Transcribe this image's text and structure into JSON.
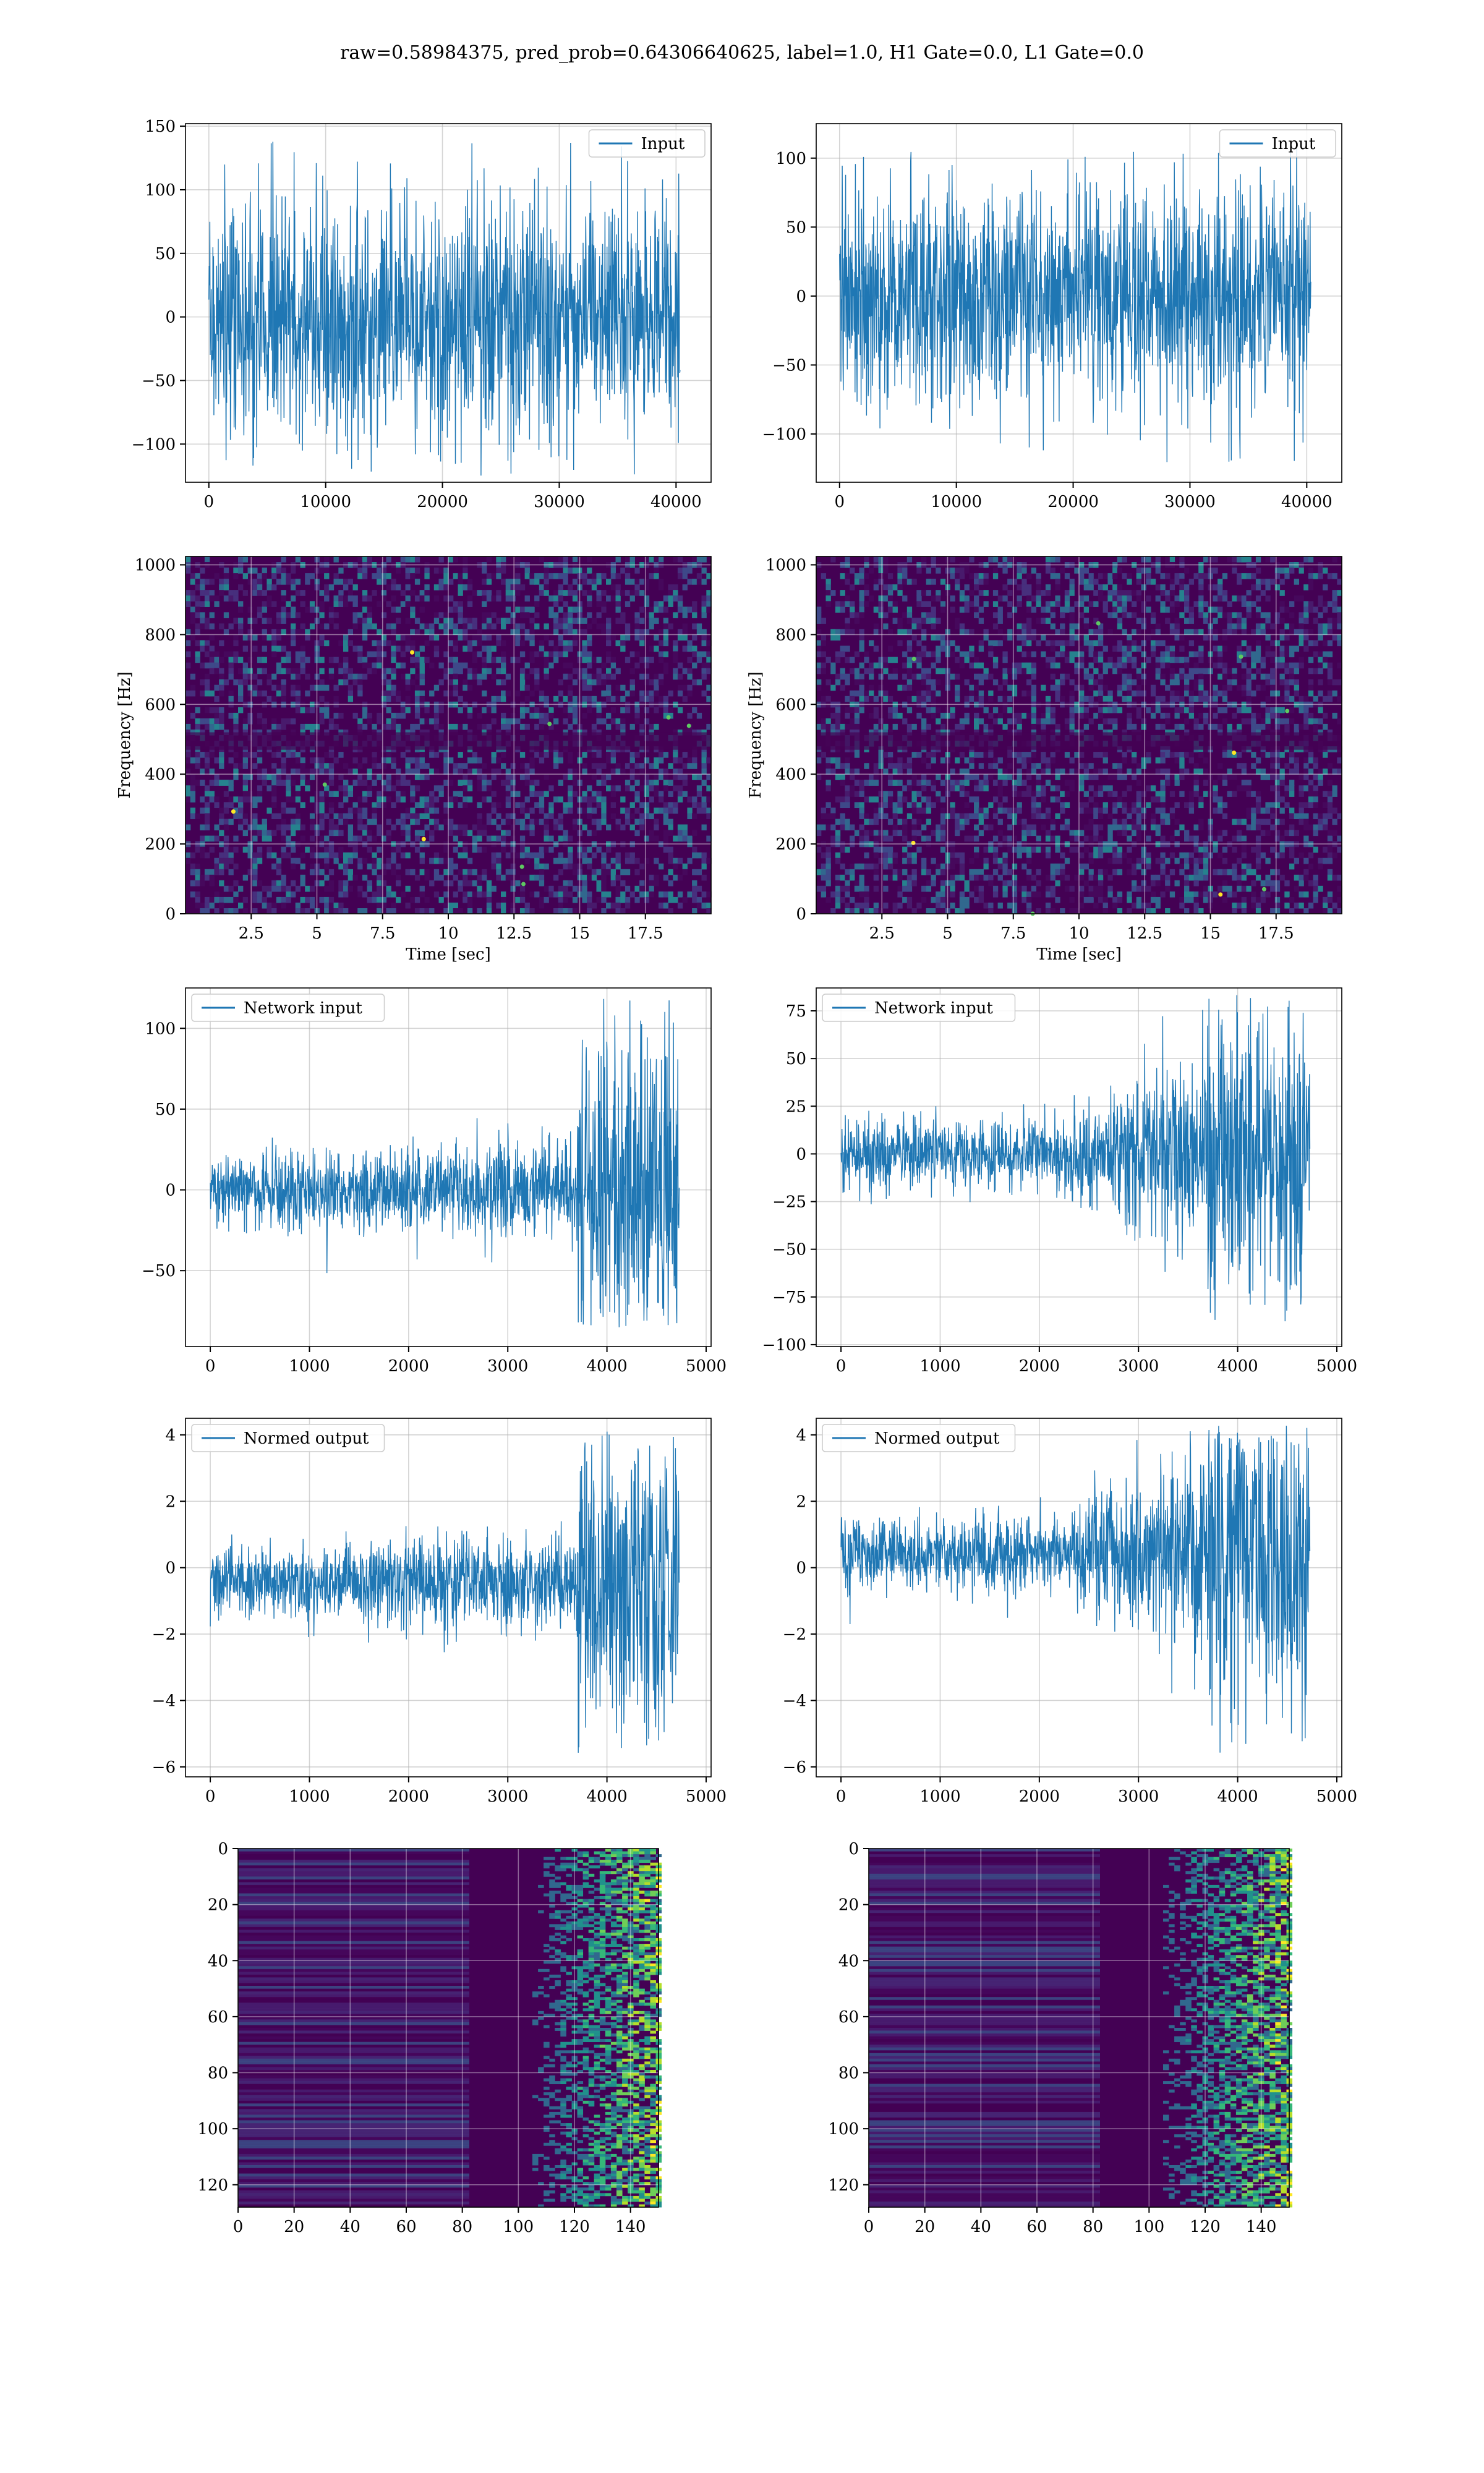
{
  "figure": {
    "title": "raw=0.58984375, pred_prob=0.64306640625, label=1.0, H1 Gate=0.0, L1 Gate=0.0"
  },
  "colors": {
    "line": "#1f77b4",
    "viridis_dark": "#440154",
    "viridis_mid": "#21918c",
    "viridis_bright": "#fde725",
    "grid": "#cccccc"
  },
  "chart_data": [
    {
      "type": "line",
      "panel": "row1-left",
      "series": [
        {
          "name": "Input",
          "x_range": [
            0,
            40960
          ],
          "amplitude_range": [
            -125,
            138
          ]
        }
      ],
      "xlim": [
        -2000,
        43000
      ],
      "ylim": [
        -130,
        152
      ],
      "xticks": [
        0,
        10000,
        20000,
        30000,
        40000
      ],
      "yticks": [
        -100,
        -50,
        0,
        50,
        100,
        150
      ],
      "legend": "top-right",
      "grid": true
    },
    {
      "type": "line",
      "panel": "row1-right",
      "series": [
        {
          "name": "Input",
          "x_range": [
            0,
            40960
          ],
          "amplitude_range": [
            -121,
            112
          ]
        }
      ],
      "xlim": [
        -2000,
        43000
      ],
      "ylim": [
        -135,
        125
      ],
      "xticks": [
        0,
        10000,
        20000,
        30000,
        40000
      ],
      "yticks": [
        -100,
        -50,
        0,
        50,
        100
      ],
      "legend": "top-right",
      "grid": true
    },
    {
      "type": "heatmap",
      "panel": "row2-left",
      "xlabel": "Time [sec]",
      "ylabel": "Frequency [Hz]",
      "xlim": [
        0,
        20
      ],
      "ylim": [
        0,
        1024
      ],
      "xticks": [
        2.5,
        5.0,
        7.5,
        10.0,
        12.5,
        15.0,
        17.5
      ],
      "yticks": [
        0,
        200,
        400,
        600,
        800,
        1000
      ],
      "colormap": "viridis",
      "grid": true
    },
    {
      "type": "heatmap",
      "panel": "row2-right",
      "xlabel": "Time [sec]",
      "ylabel": "Frequency [Hz]",
      "xlim": [
        0,
        20
      ],
      "ylim": [
        0,
        1024
      ],
      "xticks": [
        2.5,
        5.0,
        7.5,
        10.0,
        12.5,
        15.0,
        17.5
      ],
      "yticks": [
        0,
        200,
        400,
        600,
        800,
        1000
      ],
      "colormap": "viridis",
      "grid": true
    },
    {
      "type": "line",
      "panel": "row3-left",
      "series": [
        {
          "name": "Network input",
          "x_range": [
            0,
            4800
          ],
          "amplitude_range": [
            -86,
            119
          ]
        }
      ],
      "xlim": [
        -250,
        5050
      ],
      "ylim": [
        -97,
        125
      ],
      "xticks": [
        0,
        1000,
        2000,
        3000,
        4000,
        5000
      ],
      "yticks": [
        -50,
        0,
        50,
        100
      ],
      "legend": "top-left",
      "grid": true
    },
    {
      "type": "line",
      "panel": "row3-right",
      "series": [
        {
          "name": "Network input",
          "x_range": [
            0,
            4800
          ],
          "amplitude_range": [
            -93,
            86
          ]
        }
      ],
      "xlim": [
        -250,
        5050
      ],
      "ylim": [
        -101,
        87
      ],
      "xticks": [
        0,
        1000,
        2000,
        3000,
        4000,
        5000
      ],
      "yticks": [
        -100,
        -75,
        -50,
        -25,
        0,
        25,
        50,
        75
      ],
      "legend": "top-left",
      "grid": true
    },
    {
      "type": "line",
      "panel": "row4-left",
      "series": [
        {
          "name": "Normed output",
          "x_range": [
            0,
            4800
          ],
          "amplitude_range": [
            -5.8,
            4.1
          ]
        }
      ],
      "xlim": [
        -250,
        5050
      ],
      "ylim": [
        -6.3,
        4.5
      ],
      "xticks": [
        0,
        1000,
        2000,
        3000,
        4000,
        5000
      ],
      "yticks": [
        -6,
        -4,
        -2,
        0,
        2,
        4
      ],
      "legend": "top-left",
      "grid": true
    },
    {
      "type": "line",
      "panel": "row4-right",
      "series": [
        {
          "name": "Normed output",
          "x_range": [
            0,
            4800
          ],
          "amplitude_range": [
            -5.6,
            4.3
          ]
        }
      ],
      "xlim": [
        -250,
        5050
      ],
      "ylim": [
        -6.3,
        4.5
      ],
      "xticks": [
        0,
        1000,
        2000,
        3000,
        4000,
        5000
      ],
      "yticks": [
        -6,
        -4,
        -2,
        0,
        2,
        4
      ],
      "legend": "top-left",
      "grid": true
    },
    {
      "type": "heatmap",
      "panel": "row5-left",
      "xlim": [
        0,
        150
      ],
      "ylim": [
        128,
        0
      ],
      "xticks": [
        0,
        20,
        40,
        60,
        80,
        100,
        120,
        140
      ],
      "yticks": [
        0,
        20,
        40,
        60,
        80,
        100,
        120
      ],
      "colormap": "viridis",
      "grid": true
    },
    {
      "type": "heatmap",
      "panel": "row5-right",
      "xlim": [
        0,
        150
      ],
      "ylim": [
        128,
        0
      ],
      "xticks": [
        0,
        20,
        40,
        60,
        80,
        100,
        120,
        140
      ],
      "yticks": [
        0,
        20,
        40,
        60,
        80,
        100,
        120
      ],
      "colormap": "viridis",
      "grid": true
    }
  ]
}
